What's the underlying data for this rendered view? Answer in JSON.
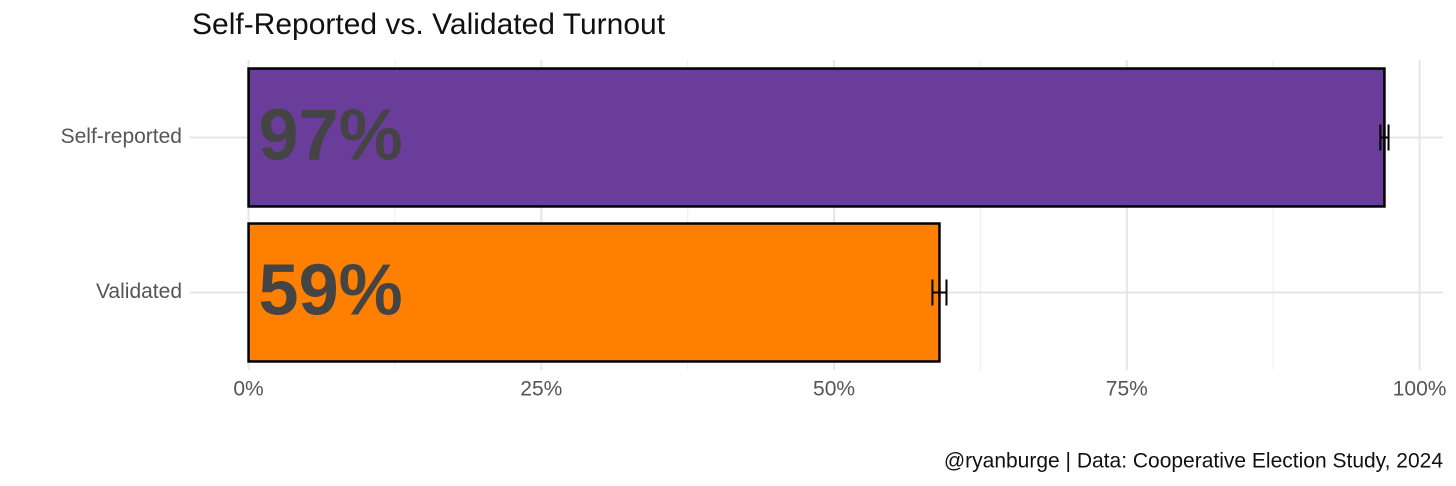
{
  "chart_data": {
    "type": "bar",
    "orientation": "horizontal",
    "title": "Self-Reported vs. Validated Turnout",
    "caption": "@ryanburge | Data: Cooperative Election Study, 2024",
    "categories": [
      "Self-reported",
      "Validated"
    ],
    "values": [
      97,
      59
    ],
    "value_labels": [
      "97%",
      "59%"
    ],
    "errors": [
      0.35,
      0.6
    ],
    "colors": [
      "#6a3d9a",
      "#ff7f00"
    ],
    "label_colors": [
      "#ffffff",
      "#000000"
    ],
    "xlim": [
      -5,
      102
    ],
    "xticks": [
      {
        "value": 0,
        "label": "0%"
      },
      {
        "value": 25,
        "label": "25%"
      },
      {
        "value": 50,
        "label": "50%"
      },
      {
        "value": 75,
        "label": "75%"
      },
      {
        "value": 100,
        "label": "100%"
      }
    ],
    "x_minor_ticks": [
      12.5,
      37.5,
      62.5,
      87.5
    ],
    "grid": true
  }
}
